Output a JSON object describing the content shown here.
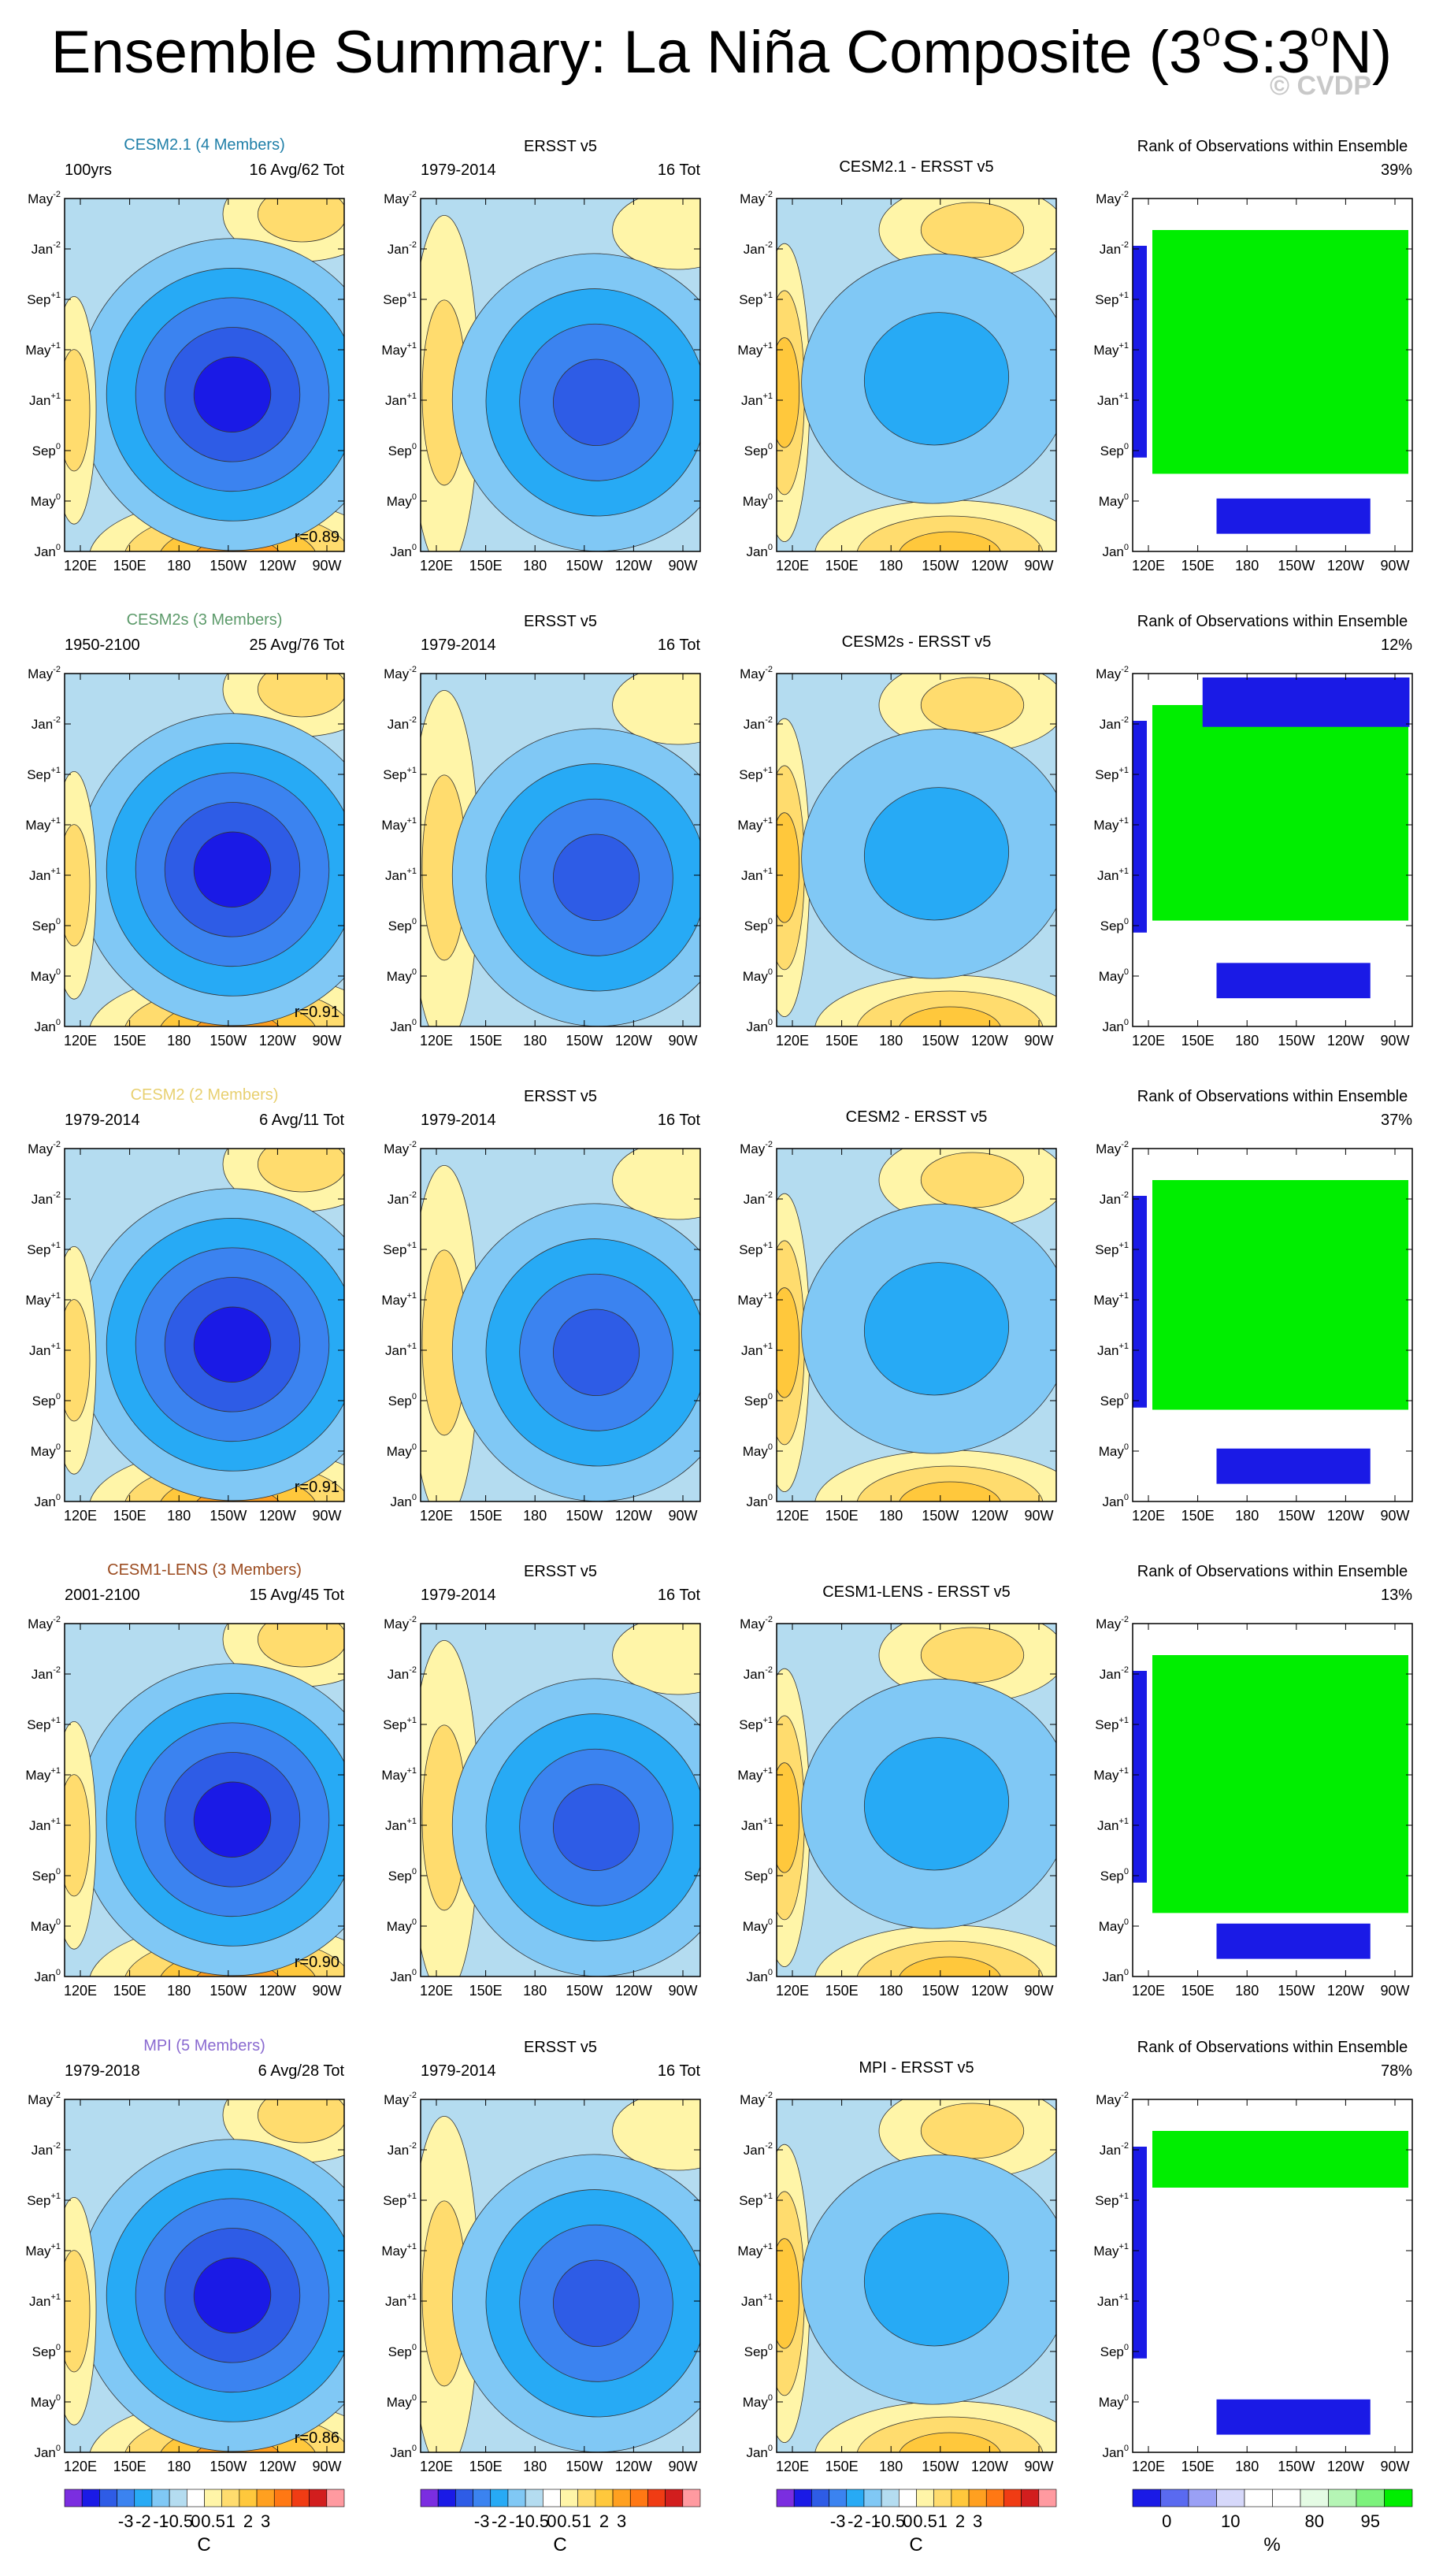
{
  "page": {
    "title_prefix": "Ensemble Summary: La Niña Composite (3",
    "title_sup1": "o",
    "title_mid": "S:3",
    "title_sup2": "o",
    "title_suffix": "N)",
    "watermark": "© CVDP"
  },
  "colors": {
    "contour_palette": [
      "#7b2ee0",
      "#1a1ae6",
      "#2e5ce6",
      "#3b83f0",
      "#27aaf5",
      "#80c8f5",
      "#b4dcf0",
      "#ffffff",
      "#fff5a8",
      "#ffdc6e",
      "#ffc83c",
      "#ffa020",
      "#ff7814",
      "#f03c14",
      "#d21e1e",
      "#ff9aa0"
    ],
    "rank_palette": [
      "#1a1ae6",
      "#5a6af0",
      "#9aa0f5",
      "#d6d8fa",
      "#ffffff",
      "#ffffff",
      "#e4fbe4",
      "#b5f5b5",
      "#7cf27c",
      "#00ee00"
    ]
  },
  "axes": {
    "y_ticks": [
      {
        "m": "May",
        "s": "-2"
      },
      {
        "m": "Jan",
        "s": "-2"
      },
      {
        "m": "Sep",
        "s": "+1"
      },
      {
        "m": "May",
        "s": "+1"
      },
      {
        "m": "Jan",
        "s": "+1"
      },
      {
        "m": "Sep",
        "s": "0"
      },
      {
        "m": "May",
        "s": "0"
      },
      {
        "m": "Jan",
        "s": "0"
      }
    ],
    "x_ticks": [
      "120E",
      "150E",
      "180",
      "150W",
      "120W",
      "90W"
    ]
  },
  "rows": [
    {
      "model": "CESM2.1 (4 Members)",
      "model_color": "#1f7fa8",
      "period": "100yrs",
      "members": "16 Avg/62 Tot",
      "r": "r=0.89",
      "obs_title": "ERSST v5",
      "obs_period": "1979-2014",
      "obs_count": "16 Tot",
      "diff_title": "CESM2.1 - ERSST v5",
      "rank_title": "Rank of Observations within Ensemble",
      "rank_pct": "39%"
    },
    {
      "model": "CESM2s (3 Members)",
      "model_color": "#5c9a6a",
      "period": "1950-2100",
      "members": "25 Avg/76 Tot",
      "r": "r=0.91",
      "obs_title": "ERSST v5",
      "obs_period": "1979-2014",
      "obs_count": "16 Tot",
      "diff_title": "CESM2s - ERSST v5",
      "rank_title": "Rank of Observations within Ensemble",
      "rank_pct": "12%"
    },
    {
      "model": "CESM2 (2 Members)",
      "model_color": "#e8d070",
      "period": "1979-2014",
      "members": "6 Avg/11 Tot",
      "r": "r=0.91",
      "obs_title": "ERSST v5",
      "obs_period": "1979-2014",
      "obs_count": "16 Tot",
      "diff_title": "CESM2 - ERSST v5",
      "rank_title": "Rank of Observations within Ensemble",
      "rank_pct": "37%"
    },
    {
      "model": "CESM1-LENS (3 Members)",
      "model_color": "#9a4a1e",
      "period": "2001-2100",
      "members": "15 Avg/45 Tot",
      "r": "r=0.90",
      "obs_title": "ERSST v5",
      "obs_period": "1979-2014",
      "obs_count": "16 Tot",
      "diff_title": "CESM1-LENS - ERSST v5",
      "rank_title": "Rank of Observations within Ensemble",
      "rank_pct": "13%"
    },
    {
      "model": "MPI (5 Members)",
      "model_color": "#8a6ad0",
      "period": "1979-2018",
      "members": "6 Avg/28 Tot",
      "r": "r=0.86",
      "obs_title": "ERSST v5",
      "obs_period": "1979-2014",
      "obs_count": "16 Tot",
      "diff_title": "MPI - ERSST v5",
      "rank_title": "Rank of Observations within Ensemble",
      "rank_pct": "78%"
    }
  ],
  "colorbars": {
    "temp_labels": [
      "-3",
      "-2",
      "-1",
      "-0.5",
      "0",
      "0.5",
      "1",
      "2",
      "3"
    ],
    "temp_unit": "C",
    "rank_labels": [
      "0",
      "10",
      "80",
      "95"
    ],
    "rank_unit": "%"
  },
  "chart_data": {
    "type": "heatmap",
    "title": "Ensemble Summary: La Niña Composite (3oS:3oN)",
    "panels_per_row": [
      "model composite",
      "observed composite",
      "model minus observed",
      "rank of observations"
    ],
    "x_tick_labels": [
      "120E",
      "150E",
      "180",
      "150W",
      "120W",
      "90W"
    ],
    "y_tick_labels": [
      "May-2",
      "Jan-2",
      "Sep+1",
      "May+1",
      "Jan+1",
      "Sep0",
      "May0",
      "Jan0"
    ],
    "temperature_levels": [
      -3,
      -2,
      -1,
      -0.5,
      0,
      0.5,
      1,
      2,
      3
    ],
    "temperature_unit": "C",
    "rank_levels": [
      0,
      10,
      80,
      95
    ],
    "rank_unit": "%",
    "pattern_correlations": [
      0.89,
      0.91,
      0.91,
      0.9,
      0.86
    ],
    "rank_percentages": [
      39,
      12,
      37,
      13,
      78
    ],
    "grid": false
  }
}
